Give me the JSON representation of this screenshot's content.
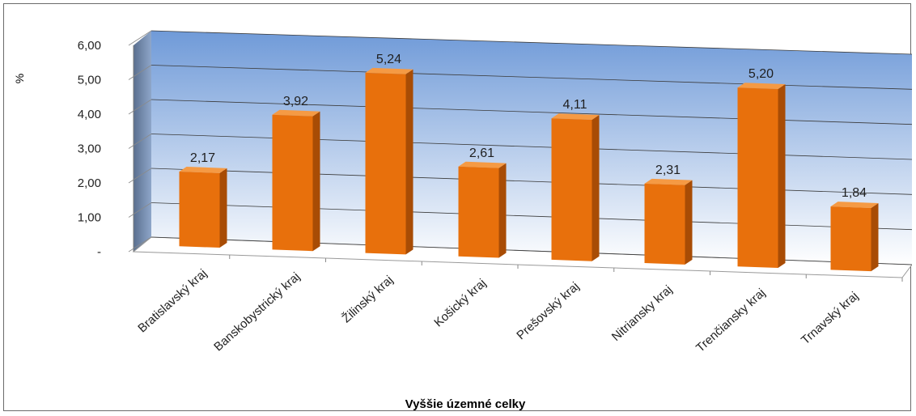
{
  "chart_data": {
    "type": "bar",
    "title": "",
    "xlabel": "Vyššie územné celky",
    "ylabel": "%",
    "ylim": [
      0,
      6
    ],
    "yticks": [
      "-",
      "1,00",
      "2,00",
      "3,00",
      "4,00",
      "5,00",
      "6,00"
    ],
    "categories": [
      "Bratislavský kraj",
      "Banskobystrický kraj",
      "Žilinský kraj",
      "Košický kraj",
      "Prešovský kraj",
      "Nitriansky kraj",
      "Trenčiansky kraj",
      "Trnavský kraj"
    ],
    "values": [
      2.17,
      3.92,
      5.24,
      2.61,
      4.11,
      2.31,
      5.2,
      1.84
    ],
    "data_labels": [
      "2,17",
      "3,92",
      "5,24",
      "2,61",
      "4,11",
      "2,31",
      "5,20",
      "1,84"
    ],
    "grid": true,
    "legend": "none",
    "colors": {
      "bar_front": "#e8700c",
      "bar_side": "#a84c05",
      "bar_top": "#f59a44",
      "wall_top": "#6f9ad8",
      "wall_bottom": "#ffffff"
    }
  }
}
